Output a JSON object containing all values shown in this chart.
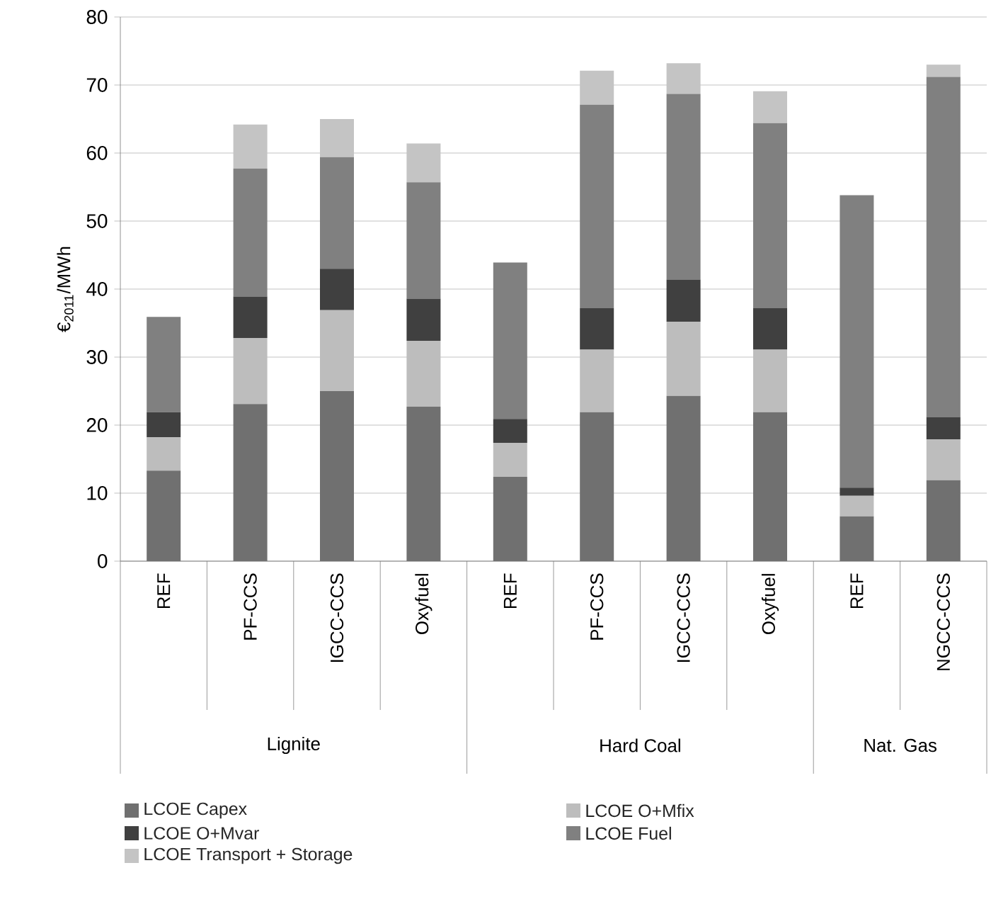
{
  "chart_data": {
    "type": "bar",
    "stacked": true,
    "ylabel": "€$_{2011}$/MWh",
    "categories": [
      "REF",
      "PF-CCS",
      "IGCC-CCS",
      "Oxyfuel",
      "REF",
      "PF-CCS",
      "IGCC-CCS",
      "Oxyfuel",
      "REF",
      "NGCC-CCS"
    ],
    "series": [
      {
        "name": "LCOE Capex",
        "color": "#707070",
        "values": [
          13.3,
          23.1,
          25.0,
          22.7,
          12.4,
          21.9,
          24.3,
          21.9,
          6.6,
          11.9
        ]
      },
      {
        "name": "LCOE O+Mfix",
        "color": "#bdbdbd",
        "values": [
          4.9,
          9.7,
          11.9,
          9.7,
          5.0,
          9.2,
          10.9,
          9.2,
          3.0,
          6.0
        ]
      },
      {
        "name": "LCOE O+Mvar",
        "color": "#404040",
        "values": [
          3.7,
          6.1,
          6.1,
          6.2,
          3.5,
          6.1,
          6.2,
          6.1,
          1.2,
          3.3
        ]
      },
      {
        "name": "LCOE Fuel",
        "color": "#808080",
        "values": [
          14.0,
          18.8,
          16.4,
          17.1,
          23.0,
          29.9,
          27.3,
          27.2,
          43.0,
          50.0
        ]
      },
      {
        "name": "LCOE Transport + Storage",
        "color": "#c4c4c4",
        "values": [
          null,
          6.5,
          5.6,
          5.7,
          null,
          5.0,
          4.5,
          4.7,
          null,
          1.8
        ]
      }
    ],
    "ylim": [
      0,
      80
    ],
    "yticks": [
      0,
      10,
      20,
      30,
      40,
      50,
      60,
      70,
      80
    ],
    "grid": "y",
    "legend": "bottom",
    "annotations": [
      "Lignite",
      "Hard Coal",
      "Nat. Gas"
    ]
  }
}
